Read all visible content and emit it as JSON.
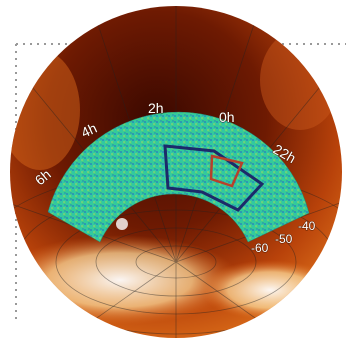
{
  "labels": {
    "ra": [
      "2h",
      "0h",
      "4h",
      "22h",
      "6h"
    ],
    "dec": [
      "-40",
      "-50",
      "-60"
    ]
  }
}
